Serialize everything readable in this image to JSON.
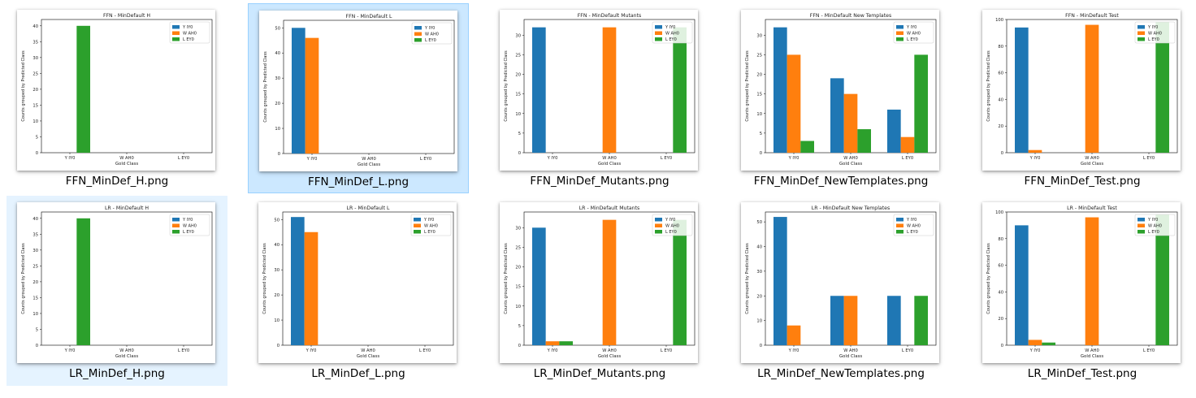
{
  "colors": {
    "series": [
      "#1f77b4",
      "#ff7f0e",
      "#2ca02c"
    ],
    "selection_fill": "#cce8ff",
    "hover_fill": "#e5f3ff"
  },
  "files": [
    {
      "filename": "FFN_MinDef_H.png",
      "state": "normal",
      "chart_data": {
        "type": "bar",
        "title": "FFN - MinDefault H",
        "xlabel": "Gold Class",
        "ylabel": "Counts grouped by Predicted Class",
        "categories": [
          "Y IY0",
          "W AH0",
          "L EY0"
        ],
        "ylim": [
          0,
          42
        ],
        "yticks": [
          0,
          5,
          10,
          15,
          20,
          25,
          30,
          35,
          40
        ],
        "legend": "top-right",
        "series": [
          {
            "name": "Y IY0",
            "values": [
              0,
              0,
              0
            ]
          },
          {
            "name": "W AH0",
            "values": [
              0,
              0,
              0
            ]
          },
          {
            "name": "L EY0",
            "values": [
              40,
              0,
              0
            ]
          }
        ]
      }
    },
    {
      "filename": "FFN_MinDef_L.png",
      "state": "selected",
      "chart_data": {
        "type": "bar",
        "title": "FFN - MinDefault L",
        "xlabel": "Gold Class",
        "ylabel": "Counts grouped by Predicted Class",
        "categories": [
          "Y IY0",
          "W AH0",
          "L EY0"
        ],
        "ylim": [
          0,
          53
        ],
        "yticks": [
          0,
          10,
          20,
          30,
          40,
          50
        ],
        "legend": "top-right",
        "series": [
          {
            "name": "Y IY0",
            "values": [
              50,
              0,
              0
            ]
          },
          {
            "name": "W AH0",
            "values": [
              46,
              0,
              0
            ]
          },
          {
            "name": "L EY0",
            "values": [
              0,
              0,
              0
            ]
          }
        ]
      }
    },
    {
      "filename": "FFN_MinDef_Mutants.png",
      "state": "normal",
      "chart_data": {
        "type": "bar",
        "title": "FFN - MinDefault Mutants",
        "xlabel": "Gold Class",
        "ylabel": "Counts grouped by Predicted Class",
        "categories": [
          "Y IY0",
          "W AH0",
          "L EY0"
        ],
        "ylim": [
          0,
          34
        ],
        "yticks": [
          0,
          5,
          10,
          15,
          20,
          25,
          30
        ],
        "legend": "top-right",
        "series": [
          {
            "name": "Y IY0",
            "values": [
              32,
              0,
              0
            ]
          },
          {
            "name": "W AH0",
            "values": [
              0,
              32,
              0
            ]
          },
          {
            "name": "L EY0",
            "values": [
              0,
              0,
              32
            ]
          }
        ]
      }
    },
    {
      "filename": "FFN_MinDef_NewTemplates.png",
      "state": "normal",
      "chart_data": {
        "type": "bar",
        "title": "FFN - MinDefault New Templates",
        "xlabel": "Gold Class",
        "ylabel": "Counts grouped by Predicted Class",
        "categories": [
          "Y IY0",
          "W AH0",
          "L EY0"
        ],
        "ylim": [
          0,
          34
        ],
        "yticks": [
          0,
          5,
          10,
          15,
          20,
          25,
          30
        ],
        "legend": "top-right",
        "series": [
          {
            "name": "Y IY0",
            "values": [
              32,
              19,
              11
            ]
          },
          {
            "name": "W AH0",
            "values": [
              25,
              15,
              4
            ]
          },
          {
            "name": "L EY0",
            "values": [
              3,
              6,
              25
            ]
          }
        ]
      }
    },
    {
      "filename": "FFN_MinDef_Test.png",
      "state": "normal",
      "chart_data": {
        "type": "bar",
        "title": "FFN - MinDefault Test",
        "xlabel": "Gold Class",
        "ylabel": "Counts grouped by Predicted Class",
        "categories": [
          "Y IY0",
          "W AH0",
          "L EY0"
        ],
        "ylim": [
          0,
          100
        ],
        "yticks": [
          0,
          20,
          40,
          60,
          80,
          100
        ],
        "legend": "top-right",
        "series": [
          {
            "name": "Y IY0",
            "values": [
              94,
              0,
              0
            ]
          },
          {
            "name": "W AH0",
            "values": [
              2,
              96,
              0
            ]
          },
          {
            "name": "L EY0",
            "values": [
              0,
              0,
              98
            ]
          }
        ]
      }
    },
    {
      "filename": "LR_MinDef_H.png",
      "state": "hover",
      "chart_data": {
        "type": "bar",
        "title": "LR - MinDefault H",
        "xlabel": "Gold Class",
        "ylabel": "Counts grouped by Predicted Class",
        "categories": [
          "Y IY0",
          "W AH0",
          "L EY0"
        ],
        "ylim": [
          0,
          42
        ],
        "yticks": [
          0,
          5,
          10,
          15,
          20,
          25,
          30,
          35,
          40
        ],
        "legend": "top-right",
        "series": [
          {
            "name": "Y IY0",
            "values": [
              0,
              0,
              0
            ]
          },
          {
            "name": "W AH0",
            "values": [
              0,
              0,
              0
            ]
          },
          {
            "name": "L EY0",
            "values": [
              40,
              0,
              0
            ]
          }
        ]
      }
    },
    {
      "filename": "LR_MinDef_L.png",
      "state": "normal",
      "chart_data": {
        "type": "bar",
        "title": "LR - MinDefault L",
        "xlabel": "Gold Class",
        "ylabel": "Counts grouped by Predicted Class",
        "categories": [
          "Y IY0",
          "W AH0",
          "L EY0"
        ],
        "ylim": [
          0,
          53
        ],
        "yticks": [
          0,
          10,
          20,
          30,
          40,
          50
        ],
        "legend": "top-right",
        "series": [
          {
            "name": "Y IY0",
            "values": [
              51,
              0,
              0
            ]
          },
          {
            "name": "W AH0",
            "values": [
              45,
              0,
              0
            ]
          },
          {
            "name": "L EY0",
            "values": [
              0,
              0,
              0
            ]
          }
        ]
      }
    },
    {
      "filename": "LR_MinDef_Mutants.png",
      "state": "normal",
      "chart_data": {
        "type": "bar",
        "title": "LR - MinDefault Mutants",
        "xlabel": "Gold Class",
        "ylabel": "Counts grouped by Predicted Class",
        "categories": [
          "Y IY0",
          "W AH0",
          "L EY0"
        ],
        "ylim": [
          0,
          34
        ],
        "yticks": [
          0,
          5,
          10,
          15,
          20,
          25,
          30
        ],
        "legend": "top-right",
        "series": [
          {
            "name": "Y IY0",
            "values": [
              30,
              0,
              0
            ]
          },
          {
            "name": "W AH0",
            "values": [
              1,
              32,
              0
            ]
          },
          {
            "name": "L EY0",
            "values": [
              1,
              0,
              32
            ]
          }
        ]
      }
    },
    {
      "filename": "LR_MinDef_NewTemplates.png",
      "state": "normal",
      "chart_data": {
        "type": "bar",
        "title": "LR - MinDefault New Templates",
        "xlabel": "Gold Class",
        "ylabel": "Counts grouped by Predicted Class",
        "categories": [
          "Y IY0",
          "W AH0",
          "L EY0"
        ],
        "ylim": [
          0,
          54
        ],
        "yticks": [
          0,
          10,
          20,
          30,
          40,
          50
        ],
        "legend": "top-right",
        "series": [
          {
            "name": "Y IY0",
            "values": [
              52,
              20,
              20
            ]
          },
          {
            "name": "W AH0",
            "values": [
              8,
              20,
              0
            ]
          },
          {
            "name": "L EY0",
            "values": [
              0,
              0,
              20
            ]
          }
        ]
      }
    },
    {
      "filename": "LR_MinDef_Test.png",
      "state": "normal",
      "chart_data": {
        "type": "bar",
        "title": "LR - MinDefault Test",
        "xlabel": "Gold Class",
        "ylabel": "Counts grouped by Predicted Class",
        "categories": [
          "Y IY0",
          "W AH0",
          "L EY0"
        ],
        "ylim": [
          0,
          100
        ],
        "yticks": [
          0,
          20,
          40,
          60,
          80,
          100
        ],
        "legend": "top-right",
        "series": [
          {
            "name": "Y IY0",
            "values": [
              90,
              0,
              0
            ]
          },
          {
            "name": "W AH0",
            "values": [
              4,
              96,
              0
            ]
          },
          {
            "name": "L EY0",
            "values": [
              2,
              0,
              98
            ]
          }
        ]
      }
    }
  ]
}
